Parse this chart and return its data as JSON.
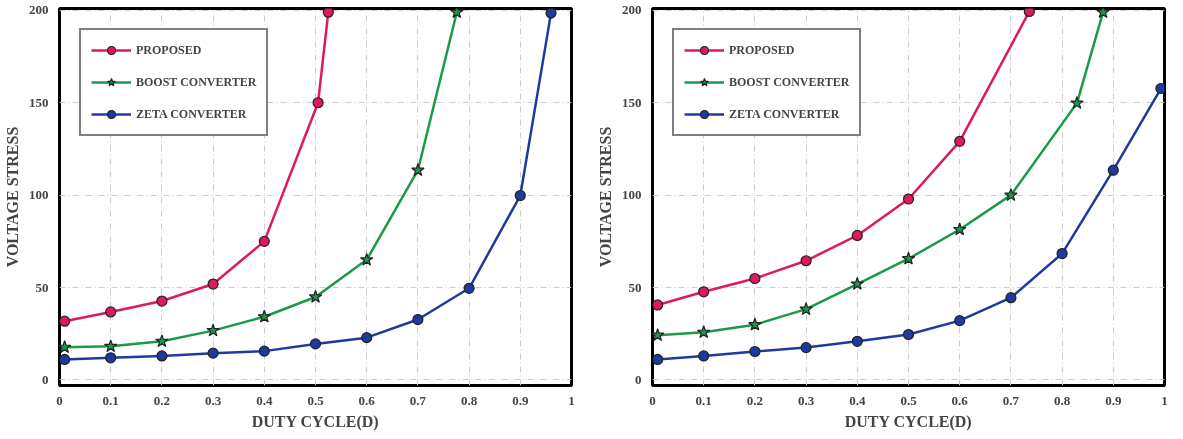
{
  "chart_data": [
    {
      "type": "line",
      "xlabel": "DUTY CYCLE(D)",
      "ylabel": "VOLTAGE STRESS",
      "xlim": [
        0,
        1
      ],
      "ylim": [
        -3,
        201
      ],
      "xticks": [
        0,
        0.1,
        0.2,
        0.3,
        0.4,
        0.5,
        0.6,
        0.7,
        0.8,
        0.9,
        1
      ],
      "yticks": [
        0,
        50,
        100,
        150,
        200
      ],
      "grid": true,
      "legend": "top left",
      "line_style": "solid",
      "series": [
        {
          "name": "PROPOSED",
          "color": "#e0195a",
          "marker": "circle",
          "x": [
            0.01,
            0.1,
            0.2,
            0.3,
            0.4,
            0.505,
            0.525
          ],
          "values": [
            31.8,
            36.8,
            42.7,
            51.9,
            75,
            150,
            199
          ]
        },
        {
          "name": "BOOST CONVERTER",
          "color": "#1a9a48",
          "marker": "star",
          "x": [
            0.01,
            0.1,
            0.2,
            0.3,
            0.4,
            0.5,
            0.6,
            0.7,
            0.776
          ],
          "values": [
            17.7,
            18.2,
            20.9,
            26.7,
            34.2,
            44.9,
            65,
            113.5,
            199
          ]
        },
        {
          "name": "ZETA CONVERTER",
          "color": "#1f3a9e",
          "marker": "circle",
          "x": [
            0.01,
            0.1,
            0.2,
            0.3,
            0.4,
            0.5,
            0.6,
            0.7,
            0.8,
            0.9,
            0.96
          ],
          "values": [
            11.1,
            12,
            13,
            14.5,
            15.6,
            19.5,
            22.9,
            32.7,
            49.6,
            99.8,
            198.5
          ]
        }
      ]
    },
    {
      "type": "line",
      "xlabel": "DUTY CYCLE(D)",
      "ylabel": "VOLTAGE STRESS",
      "xlim": [
        0,
        1
      ],
      "ylim": [
        -3,
        201
      ],
      "xticks": [
        0,
        0.1,
        0.2,
        0.3,
        0.4,
        0.5,
        0.6,
        0.7,
        0.8,
        0.9,
        1
      ],
      "yticks": [
        0,
        50,
        100,
        150,
        200
      ],
      "grid": true,
      "legend": "top left",
      "line_style": "solid",
      "series": [
        {
          "name": "PROPOSED",
          "color": "#e0195a",
          "marker": "circle",
          "x": [
            0.01,
            0.1,
            0.2,
            0.3,
            0.4,
            0.5,
            0.6,
            0.736
          ],
          "values": [
            40.6,
            47.7,
            54.9,
            64.5,
            78.2,
            97.9,
            129.1,
            199.4
          ]
        },
        {
          "name": "BOOST CONVERTER",
          "color": "#1a9a48",
          "marker": "star",
          "x": [
            0.01,
            0.1,
            0.2,
            0.3,
            0.4,
            0.5,
            0.6,
            0.7,
            0.829,
            0.88
          ],
          "values": [
            24.2,
            25.8,
            29.9,
            38.3,
            51.9,
            65.6,
            81.4,
            100,
            149.8,
            199
          ]
        },
        {
          "name": "ZETA CONVERTER",
          "color": "#1f3a9e",
          "marker": "circle",
          "x": [
            0.01,
            0.1,
            0.2,
            0.3,
            0.4,
            0.5,
            0.6,
            0.7,
            0.8,
            0.9,
            0.993
          ],
          "values": [
            11.1,
            13,
            15.4,
            17.5,
            20.9,
            24.6,
            32.1,
            44.5,
            68.4,
            113.5,
            157.7
          ]
        }
      ]
    }
  ]
}
